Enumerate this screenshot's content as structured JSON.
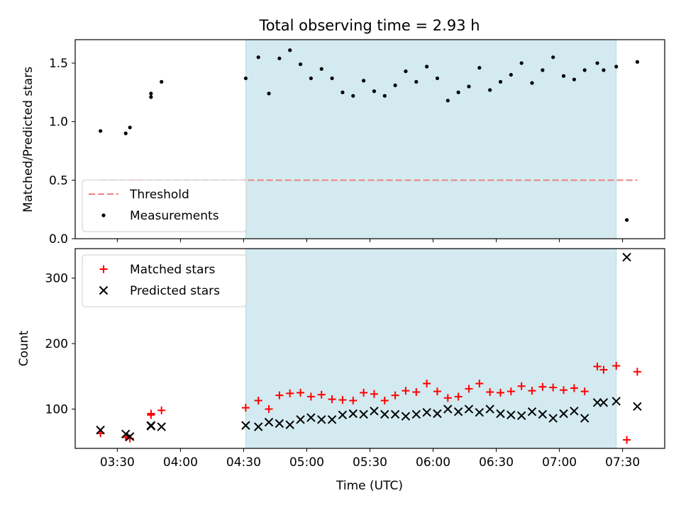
{
  "chart_data": {
    "title": "Total observing time = 2.93 h",
    "xlabel": "Time (UTC)",
    "x_ticks": [
      "03:30",
      "04:00",
      "04:30",
      "05:00",
      "05:30",
      "06:00",
      "06:30",
      "07:00",
      "07:30"
    ],
    "x_range": [
      "03:10",
      "07:50"
    ],
    "shaded_interval": [
      "04:31",
      "07:27"
    ],
    "shade_color": "#d3eaf0",
    "panels": [
      {
        "type": "scatter",
        "ylabel": "Matched/Predicted stars",
        "ylim": [
          0,
          1.7
        ],
        "yticks": [
          "0.0",
          "0.5",
          "1.0",
          "1.5"
        ],
        "legend_position": "lower-left",
        "threshold": {
          "name": "Threshold",
          "value": 0.5,
          "x_range": [
            "03:22",
            "07:37"
          ],
          "color": "#f08080"
        },
        "series": [
          {
            "name": "Measurements",
            "color": "#000000",
            "points": [
              [
                "03:22",
                0.92
              ],
              [
                "03:34",
                0.9
              ],
              [
                "03:36",
                0.95
              ],
              [
                "03:46",
                1.24
              ],
              [
                "03:46",
                1.21
              ],
              [
                "03:51",
                1.34
              ],
              [
                "04:31",
                1.37
              ],
              [
                "04:37",
                1.55
              ],
              [
                "04:42",
                1.24
              ],
              [
                "04:47",
                1.54
              ],
              [
                "04:52",
                1.61
              ],
              [
                "04:57",
                1.49
              ],
              [
                "05:02",
                1.37
              ],
              [
                "05:07",
                1.45
              ],
              [
                "05:12",
                1.37
              ],
              [
                "05:17",
                1.25
              ],
              [
                "05:22",
                1.22
              ],
              [
                "05:27",
                1.35
              ],
              [
                "05:32",
                1.26
              ],
              [
                "05:37",
                1.22
              ],
              [
                "05:42",
                1.31
              ],
              [
                "05:47",
                1.43
              ],
              [
                "05:52",
                1.34
              ],
              [
                "05:57",
                1.47
              ],
              [
                "06:02",
                1.37
              ],
              [
                "06:07",
                1.18
              ],
              [
                "06:12",
                1.25
              ],
              [
                "06:17",
                1.3
              ],
              [
                "06:22",
                1.46
              ],
              [
                "06:27",
                1.27
              ],
              [
                "06:32",
                1.34
              ],
              [
                "06:37",
                1.4
              ],
              [
                "06:42",
                1.5
              ],
              [
                "06:47",
                1.33
              ],
              [
                "06:52",
                1.44
              ],
              [
                "06:57",
                1.55
              ],
              [
                "07:02",
                1.39
              ],
              [
                "07:07",
                1.36
              ],
              [
                "07:12",
                1.44
              ],
              [
                "07:18",
                1.5
              ],
              [
                "07:21",
                1.44
              ],
              [
                "07:27",
                1.47
              ],
              [
                "07:32",
                0.16
              ],
              [
                "07:37",
                1.51
              ]
            ]
          }
        ]
      },
      {
        "type": "scatter",
        "ylabel": "Count",
        "ylim": [
          40,
          345
        ],
        "yticks": [
          "100",
          "200",
          "300"
        ],
        "legend_position": "upper-left",
        "series": [
          {
            "name": "Matched stars",
            "color": "#ff0000",
            "marker": "plus",
            "points": [
              [
                "03:22",
                63
              ],
              [
                "03:34",
                57
              ],
              [
                "03:36",
                55
              ],
              [
                "03:46",
                93
              ],
              [
                "03:46",
                91
              ],
              [
                "03:51",
                98
              ],
              [
                "04:31",
                102
              ],
              [
                "04:37",
                113
              ],
              [
                "04:42",
                100
              ],
              [
                "04:47",
                121
              ],
              [
                "04:52",
                124
              ],
              [
                "04:57",
                125
              ],
              [
                "05:02",
                119
              ],
              [
                "05:07",
                122
              ],
              [
                "05:12",
                115
              ],
              [
                "05:17",
                114
              ],
              [
                "05:22",
                113
              ],
              [
                "05:27",
                125
              ],
              [
                "05:32",
                123
              ],
              [
                "05:37",
                113
              ],
              [
                "05:42",
                121
              ],
              [
                "05:47",
                128
              ],
              [
                "05:52",
                126
              ],
              [
                "05:57",
                139
              ],
              [
                "06:02",
                127
              ],
              [
                "06:07",
                117
              ],
              [
                "06:12",
                119
              ],
              [
                "06:17",
                131
              ],
              [
                "06:22",
                139
              ],
              [
                "06:27",
                126
              ],
              [
                "06:32",
                125
              ],
              [
                "06:37",
                127
              ],
              [
                "06:42",
                135
              ],
              [
                "06:47",
                128
              ],
              [
                "06:52",
                134
              ],
              [
                "06:57",
                133
              ],
              [
                "07:02",
                129
              ],
              [
                "07:07",
                132
              ],
              [
                "07:12",
                127
              ],
              [
                "07:18",
                165
              ],
              [
                "07:21",
                160
              ],
              [
                "07:27",
                166
              ],
              [
                "07:32",
                53
              ],
              [
                "07:37",
                157
              ]
            ]
          },
          {
            "name": "Predicted stars",
            "color": "#000000",
            "marker": "x",
            "points": [
              [
                "03:22",
                68
              ],
              [
                "03:34",
                62
              ],
              [
                "03:36",
                58
              ],
              [
                "03:46",
                75
              ],
              [
                "03:46",
                74
              ],
              [
                "03:51",
                73
              ],
              [
                "04:31",
                75
              ],
              [
                "04:37",
                73
              ],
              [
                "04:42",
                80
              ],
              [
                "04:47",
                78
              ],
              [
                "04:52",
                76
              ],
              [
                "04:57",
                84
              ],
              [
                "05:02",
                87
              ],
              [
                "05:07",
                84
              ],
              [
                "05:12",
                84
              ],
              [
                "05:17",
                91
              ],
              [
                "05:22",
                93
              ],
              [
                "05:27",
                92
              ],
              [
                "05:32",
                97
              ],
              [
                "05:37",
                92
              ],
              [
                "05:42",
                92
              ],
              [
                "05:47",
                89
              ],
              [
                "05:52",
                92
              ],
              [
                "05:57",
                95
              ],
              [
                "06:02",
                93
              ],
              [
                "06:07",
                100
              ],
              [
                "06:12",
                96
              ],
              [
                "06:17",
                100
              ],
              [
                "06:22",
                95
              ],
              [
                "06:27",
                100
              ],
              [
                "06:32",
                93
              ],
              [
                "06:37",
                91
              ],
              [
                "06:42",
                90
              ],
              [
                "06:47",
                96
              ],
              [
                "06:52",
                92
              ],
              [
                "06:57",
                86
              ],
              [
                "07:02",
                93
              ],
              [
                "07:07",
                97
              ],
              [
                "07:12",
                86
              ],
              [
                "07:18",
                110
              ],
              [
                "07:21",
                110
              ],
              [
                "07:27",
                112
              ],
              [
                "07:32",
                332
              ],
              [
                "07:37",
                104
              ]
            ]
          }
        ]
      }
    ]
  }
}
